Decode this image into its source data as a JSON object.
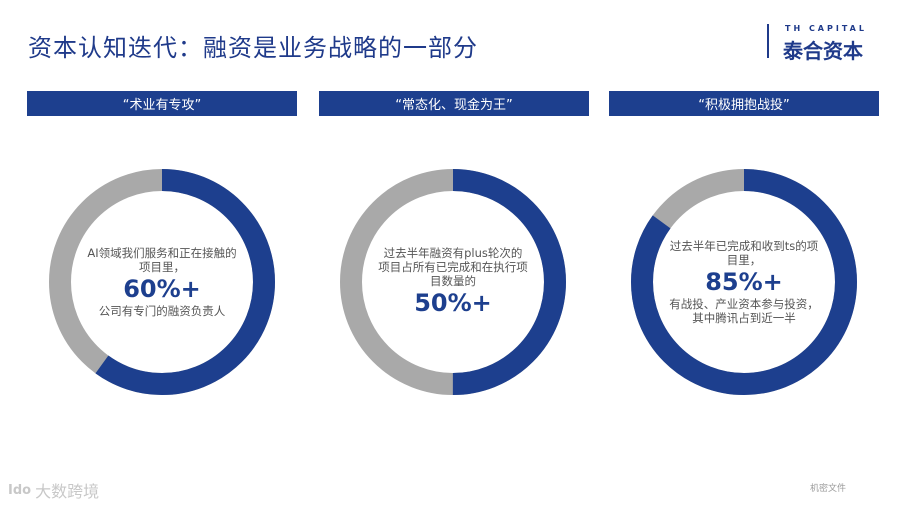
{
  "title": "资本认知迭代：融资是业务战略的一部分",
  "logo": {
    "en": "TH CAPITAL",
    "cn": "泰合资本"
  },
  "columns": [
    {
      "banner": "“术业有专攻”",
      "text_before": "AI领域我们服务和正在接触的项目里，",
      "percent": "60%+",
      "text_after": "公司有专门的融资负责人",
      "fill_fraction": 0.6
    },
    {
      "banner": "“常态化、现金为王”",
      "text_before": "过去半年融资有plus轮次的项目占所有已完成和在执行项目数量的",
      "percent": "50%+",
      "text_after": "",
      "fill_fraction": 0.5
    },
    {
      "banner": "“积极拥抱战投”",
      "text_before": "过去半年已完成和收到ts的项目里，",
      "percent": "85%+",
      "text_after": "有战投、产业资本参与投资，其中腾讯占到近一半",
      "fill_fraction": 0.85
    }
  ],
  "footer": {
    "watermark_logo": "Ido",
    "watermark": "大数跨境",
    "confidential": "机密文件"
  },
  "colors": {
    "primary": "#1d3f8e",
    "ring_bg": "#a9a9a9",
    "title": "#1f3a8a"
  }
}
